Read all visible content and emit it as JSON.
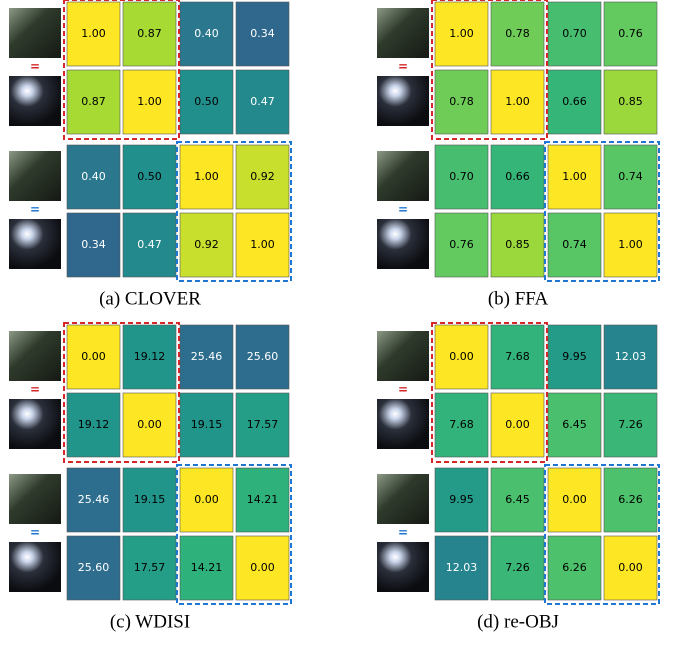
{
  "chart_data": [
    {
      "type": "heatmap",
      "caption": "(a) CLOVER",
      "values": [
        [
          1.0,
          0.87,
          0.4,
          0.34
        ],
        [
          0.87,
          1.0,
          0.5,
          0.47
        ],
        [
          0.4,
          0.5,
          1.0,
          0.92
        ],
        [
          0.34,
          0.47,
          0.92,
          1.0
        ]
      ],
      "value_labels": [
        [
          "1.00",
          "0.87",
          "0.40",
          "0.34"
        ],
        [
          "0.87",
          "1.00",
          "0.50",
          "0.47"
        ],
        [
          "0.40",
          "0.50",
          "1.00",
          "0.92"
        ],
        [
          "0.34",
          "0.47",
          "0.92",
          "1.00"
        ]
      ],
      "clim": [
        0,
        1
      ],
      "reversed": false,
      "row_markers": [
        "=",
        "="
      ],
      "marker_colors": [
        "#d62728",
        "#1f77d4"
      ]
    },
    {
      "type": "heatmap",
      "caption": "(b) FFA",
      "values": [
        [
          1.0,
          0.78,
          0.7,
          0.76
        ],
        [
          0.78,
          1.0,
          0.66,
          0.85
        ],
        [
          0.7,
          0.66,
          1.0,
          0.74
        ],
        [
          0.76,
          0.85,
          0.74,
          1.0
        ]
      ],
      "value_labels": [
        [
          "1.00",
          "0.78",
          "0.70",
          "0.76"
        ],
        [
          "0.78",
          "1.00",
          "0.66",
          "0.85"
        ],
        [
          "0.70",
          "0.66",
          "1.00",
          "0.74"
        ],
        [
          "0.76",
          "0.85",
          "0.74",
          "1.00"
        ]
      ],
      "clim": [
        0,
        1
      ],
      "reversed": false,
      "row_markers": [
        "=",
        "="
      ],
      "marker_colors": [
        "#d62728",
        "#1f77d4"
      ]
    },
    {
      "type": "heatmap",
      "caption": "(c) WDISI",
      "values": [
        [
          0.0,
          19.12,
          25.46,
          25.6
        ],
        [
          19.12,
          0.0,
          19.15,
          17.57
        ],
        [
          25.46,
          19.15,
          0.0,
          14.21
        ],
        [
          25.6,
          17.57,
          14.21,
          0.0
        ]
      ],
      "value_labels": [
        [
          "0.00",
          "19.12",
          "25.46",
          "25.60"
        ],
        [
          "19.12",
          "0.00",
          "19.15",
          "17.57"
        ],
        [
          "25.46",
          "19.15",
          "0.00",
          "14.21"
        ],
        [
          "25.60",
          "17.57",
          "14.21",
          "0.00"
        ]
      ],
      "clim": [
        0,
        40
      ],
      "reversed": true,
      "row_markers": [
        "=",
        "="
      ],
      "marker_colors": [
        "#d62728",
        "#1f77d4"
      ]
    },
    {
      "type": "heatmap",
      "caption": "(d) re-OBJ",
      "values": [
        [
          0.0,
          7.68,
          9.95,
          12.03
        ],
        [
          7.68,
          0.0,
          6.45,
          7.26
        ],
        [
          9.95,
          6.45,
          0.0,
          6.26
        ],
        [
          12.03,
          7.26,
          6.26,
          0.0
        ]
      ],
      "value_labels": [
        [
          "0.00",
          "7.68",
          "9.95",
          "12.03"
        ],
        [
          "7.68",
          "0.00",
          "6.45",
          "7.26"
        ],
        [
          "9.95",
          "6.45",
          "0.00",
          "6.26"
        ],
        [
          "12.03",
          "7.26",
          "6.26",
          "0.00"
        ]
      ],
      "clim": [
        0,
        22
      ],
      "reversed": true,
      "row_markers": [
        "=",
        "="
      ],
      "marker_colors": [
        "#d62728",
        "#1f77d4"
      ]
    }
  ]
}
